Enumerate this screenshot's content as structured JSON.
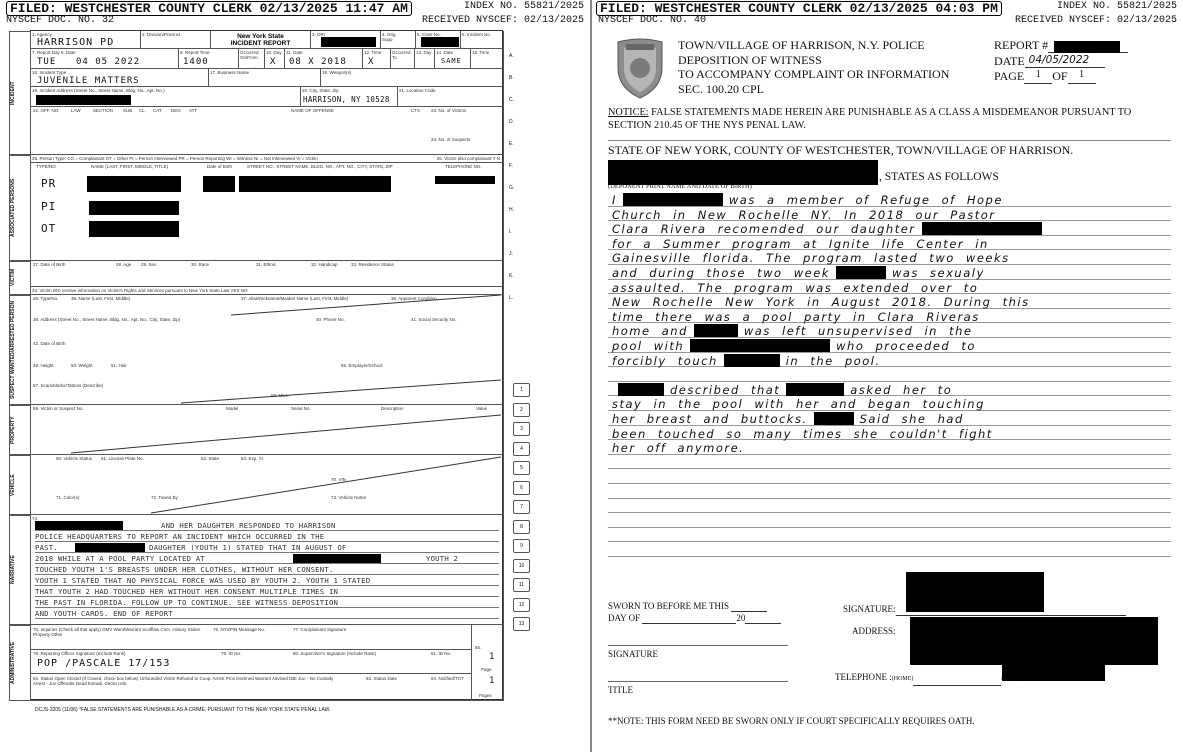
{
  "left": {
    "filed": "FILED: WESTCHESTER COUNTY CLERK 02/13/2025 11:47 AM",
    "index": "INDEX NO. 55821/2025",
    "doc": "NYSCEF DOC. NO. 32",
    "received": "RECEIVED NYSCEF: 02/13/2025",
    "form": {
      "labels": {
        "agency": "1. Agency",
        "division": "2. Division/Precinct",
        "title1": "New York State",
        "title2": "INCIDENT REPORT",
        "ori": "3. ORI",
        "orig": "4. Orig",
        "supp": "Supp",
        "case": "5. Case No.",
        "incident_no": "6. Incident No.",
        "report_day": "7. Report Day",
        "date8": "8. Date",
        "report_time": "9. Report Time",
        "occurred": "Occurred On/From",
        "day10": "10. Day",
        "date11": "11. Date",
        "time12": "12. Time",
        "occurred_to": "Occurred To",
        "day13": "13. Day",
        "date14": "14. Date",
        "time15": "15. Time",
        "incident_type": "16. Incident Type",
        "business": "17. Business Name",
        "weapon": "18. Weapon(s)",
        "address": "19. Incident Address (Street No., Street Name, Bldg. No., Apt. No.)",
        "city": "20. City, State, Zip",
        "location": "21. Location Code",
        "off_no": "22. OFF. NO.",
        "law": "LAW",
        "section": "SECTION",
        "sub": "SUB",
        "cl": "CL",
        "cat": "CAT",
        "deg": "DEG",
        "att": "ATT",
        "offense": "NAME OF OFFENSE",
        "cts": "CTS",
        "victims": "23. No. of Victims",
        "suspects": "24. No. of Suspects",
        "person_type": "25. Person Type: CO = Complainant OT = Other PI = Person Interviewed PR = Person Reporting WI = Witness NI = Not Interviewed VI = Victim",
        "victim_complainant": "26. Victim also complainant Y N",
        "typeno": "TYPE/NO",
        "name": "NAME (LAST, FIRST, MIDDLE, TITLE)",
        "dob": "Date of Birth",
        "street": "STREET NO., STREET NAME, BLDG. NO., APT. NO., CITY, STATE, ZIP",
        "tel": "TELEPHONE NO.",
        "v_dob": "27. Date of Birth",
        "age": "28. Age",
        "sex": "29. Sex",
        "race": "30. Race",
        "ethnic": "31. Ethnic",
        "handicap": "32. Handicap",
        "residence": "33. Residence Status",
        "v_rights": "34. Victim DID receive information on Victim's Rights and Services pursuant to New York State Law  YES  NO",
        "s_type": "35. Type/No.",
        "s_name": "36. Name (Last, First, Middle)",
        "alias": "37. Alias/Nickname/Maiden Name (Last, First, Middle)",
        "condition": "38. Apparent Condition",
        "s_address": "39. Address (Street No., Street Name, Bldg. No., Apt. No., City, State, Zip)",
        "phone": "40. Phone No.",
        "ssn": "41. Social Security No.",
        "s_dob": "42. Date of Birth",
        "height": "49. Height",
        "weight": "50. Weight",
        "hair": "51. Hair",
        "employer": "55. Employer/School",
        "scars": "57. Scars/Marks/Tattoos (Describe)",
        "misc": "58. Misc.",
        "p_victim": "59. Victim or Suspect No.",
        "p_model": "Model",
        "p_serial": "Serial No.",
        "p_desc": "Description",
        "p_value": "Value",
        "vehicle": "60. Vehicle Status",
        "plate": "61. License Plate No.",
        "state": "62. State",
        "exp": "63. Exp. Yr.",
        "vin": "70. VIN",
        "color": "71. Color(s)",
        "towed": "72. Towed By",
        "veh_notes": "73. Vehicle Notes",
        "narr": "74.",
        "inquiries": "75. Inquiries (Check all that apply)  DMV  Want/Warrant  Scofflaw  Crim. History  Stolen Property  Other",
        "nyspin": "76. NYSPIN Message No.",
        "complainant_sig": "77. Complainant Signature",
        "officer_sig": "78. Reporting Officer Signature (Include Rank)",
        "id79": "79. ID No.",
        "supervisor": "80. Supervisor's Signature (Include Rank)",
        "id81": "81. ID No.",
        "status": "82. Status  Open  Closed (If Closed, check box below)  Unfounded  Victim Refused to Coop.  Arrest  Pros Declined  Warrant Advised  DBI  Juv. - No Custody  Arrest - Juv  Offender Dead  Extradi. Declin  Unk.",
        "status_date": "83. Status Date",
        "notified": "84. Notified/TOT",
        "page85": "85.",
        "page": "Page",
        "pages": "Pages",
        "side_incident": "INCIDENT",
        "side_assoc": "ASSOCIATED PERSONS",
        "side_victim": "VICTIM",
        "side_suspect": "SUSPECT WANTED/ARRESTED PERSON",
        "side_property": "PROPERTY",
        "side_vehicle": "VEHICLE",
        "side_narrative": "NARRATIVE",
        "side_admin": "ADMINISTRATIVE"
      },
      "values": {
        "agency": "HARRISON PD",
        "report_day": "TUE",
        "date": "04 05 2022",
        "report_time": "1400",
        "day10": "X",
        "date11": "08 X 2018",
        "time12": "X",
        "date14": "SAME",
        "incident_type": "JUVENILE MATTERS",
        "city": "HARRISON, NY 10528",
        "p1": "PR",
        "p2": "PI",
        "p3": "OT",
        "officer": "POP /PASCALE 17/153",
        "page_no": "1",
        "pages_no": "1"
      },
      "margin_letters": [
        "A.",
        "B.",
        "C.",
        "D.",
        "E.",
        "F.",
        "G.",
        "H.",
        "I.",
        "J.",
        "K.",
        "L."
      ],
      "row_numbers": [
        "1",
        "2",
        "3",
        "4",
        "5",
        "6",
        "7",
        "8",
        "9",
        "10",
        "11",
        "12",
        "13"
      ],
      "narrative": [
        "AND HER DAUGHTER RESPONDED TO HARRISON",
        "POLICE HEADQUARTERS TO REPORT AN INCIDENT WHICH OCCURRED IN THE",
        "PAST.",
        "DAUGHTER (YOUTH 1) STATED THAT IN AUGUST OF",
        "2018 WHILE AT A POOL PARTY LOCATED AT",
        "YOUTH 2",
        "TOUCHED YOUTH 1'S BREASTS UNDER HER CLOTHES, WITHOUT HER CONSENT.",
        "YOUTH 1 STATED THAT NO PHYSICAL FORCE WAS USED BY YOUTH 2. YOUTH 1 STATED",
        "THAT YOUTH 2 HAD TOUCHED HER WITHOUT HER CONSENT MULTIPLE TIMES IN",
        "THE PAST IN FLORIDA. FOLLOW UP TO CONTINUE. SEE WITNESS DEPOSITION",
        "AND YOUTH CARDS. END OF REPORT"
      ],
      "footer": "DCJS-3205 (11/06)  *FALSE STATEMENTS ARE PUNISHABLE AS A CRIME, PURSUANT TO THE NEW YORK STATE PENAL LAW."
    }
  },
  "right": {
    "filed": "FILED: WESTCHESTER COUNTY CLERK 02/13/2025 04:03 PM",
    "index": "INDEX NO. 55821/2025",
    "doc": "NYSCEF DOC. NO. 40",
    "received": "RECEIVED NYSCEF: 02/13/2025",
    "logo_text": "POLICE DEPARTMENT HARRISON NEW YORK",
    "title": [
      "TOWN/VILLAGE OF HARRISON, N.Y. POLICE",
      "DEPOSITION OF WITNESS",
      "TO ACCOMPANY COMPLAINT OR INFORMATION",
      "SEC. 100.20 CPL"
    ],
    "report_label": "REPORT #",
    "date_label": "DATE",
    "date_value": "04/05/2022",
    "page_label": "PAGE",
    "page_value": "1",
    "of_label": "OF",
    "of_value": "1",
    "notice_label": "NOTICE:",
    "notice_text": " FALSE STATEMENTS MADE HEREIN ARE PUNISHABLE AS A CLASS A MISDEMEANOR PURSUANT TO",
    "notice_text2": "SECTION 210.45 OF THE NYS PENAL LAW.",
    "state_line": "STATE OF NEW YORK, COUNTY OF WESTCHESTER, TOWN/VILLAGE OF HARRISON.",
    "states_follows": ", STATES AS FOLLOWS",
    "deponent_label": "(DEPONENT PRINT NAME AND DATE OF BIRTH)",
    "statement": [
      [
        "I",
        "was a member of Refuge of Hope"
      ],
      [
        "Church in New Rochelle NY. In 2018 our Pastor"
      ],
      [
        "Clara Rivera recomended our daughter",
        ""
      ],
      [
        "for a Summer program at Ignite life Center in"
      ],
      [
        "Gainesville florida. The program lasted two weeks"
      ],
      [
        "and during those two week",
        "was sexualy"
      ],
      [
        "assaulted. The program was extended over to"
      ],
      [
        "New Rochelle New York in August 2018. During this"
      ],
      [
        "time there was a pool party in Clara Riveras"
      ],
      [
        "home and",
        "was left unsupervised in the"
      ],
      [
        "pool with",
        "who proceeded to"
      ],
      [
        "forcibly touch",
        "in the pool."
      ],
      [
        ""
      ],
      [
        "",
        "described that",
        "asked her to"
      ],
      [
        "stay in the pool with her and began touching"
      ],
      [
        "her breast and buttocks.",
        "Said she had"
      ],
      [
        "been touched so many times she couldn't fight"
      ],
      [
        "her off anymore."
      ]
    ],
    "sworn": "SWORN TO BEFORE ME THIS",
    "day_of": "DAY OF",
    "twenty": "20",
    "signature_left": "SIGNATURE",
    "title_label": "TITLE",
    "signature": "SIGNATURE:",
    "address": "ADDRESS:",
    "telephone": "TELEPHONE :",
    "home": "(HOME)",
    "work": "(WORK)",
    "note": "**NOTE: THIS FORM NEED BE SWORN ONLY IF COURT SPECIFICALLY REQUIRES OATH."
  }
}
